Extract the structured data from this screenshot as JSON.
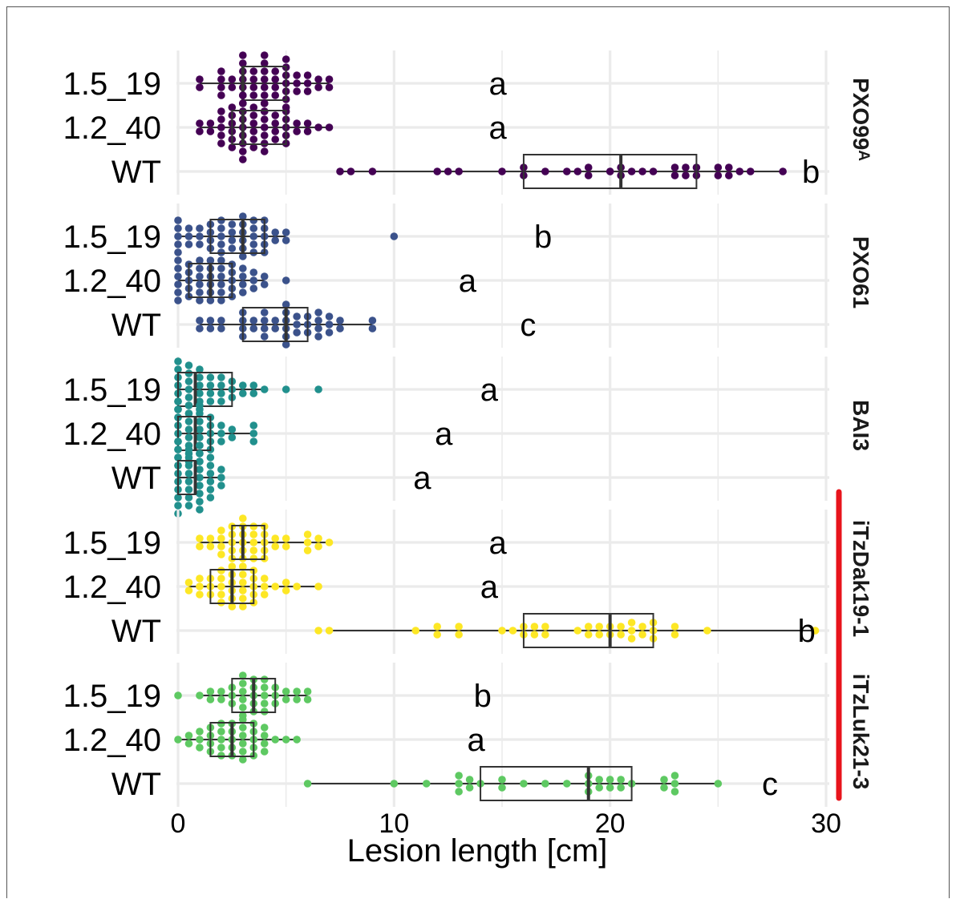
{
  "chart_data": {
    "type": "boxplot-beeswarm",
    "xlabel": "Lesion length [cm]",
    "xlim": [
      0,
      30
    ],
    "x_ticks": [
      0,
      10,
      20,
      30
    ],
    "x_tick_labels": [
      "0",
      "10",
      "20",
      "30"
    ],
    "grid": true,
    "categories": [
      "1.5_19",
      "1.2_40",
      "WT"
    ],
    "highlight_bar_panels": [
      "iTzDak19-1",
      "iTzLuk21-3"
    ],
    "highlight_bar_color": "#e8141c",
    "panels": [
      {
        "name": "PXO99ᴬ",
        "color": "#440154",
        "groups": [
          {
            "label": "1.5_19",
            "box": {
              "min": 1,
              "q1": 3,
              "median": 3,
              "q3": 5,
              "max": 7
            },
            "letter": "a",
            "letter_x": 14.8,
            "points": [
              1,
              1,
              2,
              2,
              2,
              2,
              2.5,
              2.5,
              3,
              3,
              3,
              3,
              3,
              3,
              3,
              3,
              3.5,
              3.5,
              3.5,
              3.5,
              4,
              4,
              4,
              4,
              4,
              4,
              4,
              4,
              4.5,
              4.5,
              4.5,
              4.5,
              5,
              5,
              5,
              5,
              5,
              5,
              5,
              5.5,
              5.5,
              5.5,
              6,
              6,
              6,
              6.5,
              6.5,
              7,
              7
            ]
          },
          {
            "label": "1.2_40",
            "box": {
              "min": 1,
              "q1": 2.5,
              "median": 3,
              "q3": 5,
              "max": 7
            },
            "letter": "a",
            "letter_x": 14.8,
            "points": [
              1,
              1,
              1.5,
              1.5,
              2,
              2,
              2,
              2,
              2,
              2.5,
              2.5,
              2.5,
              2.5,
              2.5,
              2.5,
              3,
              3,
              3,
              3,
              3,
              3,
              3,
              3,
              3,
              3.5,
              3.5,
              3.5,
              3.5,
              3.5,
              3.5,
              4,
              4,
              4,
              4,
              4,
              4,
              4,
              4.5,
              4.5,
              4.5,
              4.5,
              5,
              5,
              5,
              5,
              5,
              5.5,
              5.5,
              6,
              6,
              6.5,
              7
            ]
          },
          {
            "label": "WT",
            "box": {
              "min": 7.5,
              "q1": 16,
              "median": 20.5,
              "q3": 24,
              "max": 28
            },
            "letter": "b",
            "letter_x": 29.3,
            "points": [
              7.5,
              8,
              9,
              12,
              12.5,
              13,
              15,
              16,
              16,
              17,
              18,
              18.5,
              19,
              19,
              20,
              20.5,
              20.5,
              21,
              21.5,
              22,
              23,
              23,
              23.5,
              23.5,
              24,
              24,
              25,
              25,
              25.5,
              25.5,
              26,
              26.5,
              28
            ]
          }
        ]
      },
      {
        "name": "PXO61",
        "color": "#3b528b",
        "groups": [
          {
            "label": "1.5_19",
            "box": {
              "min": 0,
              "q1": 1.5,
              "median": 3,
              "q3": 4,
              "max": 5
            },
            "letter": "b",
            "letter_x": 16.9,
            "points": [
              0,
              0,
              0,
              0,
              0,
              0.5,
              0.5,
              0.5,
              1,
              1,
              1,
              1.5,
              1.5,
              1.5,
              1.5,
              2,
              2,
              2,
              2,
              2,
              2.5,
              2.5,
              2.5,
              2.5,
              3,
              3,
              3,
              3,
              3,
              3,
              3.5,
              3.5,
              3.5,
              3.5,
              3.5,
              4,
              4,
              4,
              4,
              4,
              4.5,
              4.5,
              5,
              5,
              10
            ]
          },
          {
            "label": "1.2_40",
            "box": {
              "min": 0,
              "q1": 0.5,
              "median": 1.5,
              "q3": 2.5,
              "max": 4
            },
            "letter": "a",
            "letter_x": 13.4,
            "points": [
              0,
              0,
              0,
              0,
              0,
              0,
              0.5,
              0.5,
              0.5,
              0.5,
              0.5,
              1,
              1,
              1,
              1,
              1,
              1,
              1.5,
              1.5,
              1.5,
              1.5,
              1.5,
              1.5,
              2,
              2,
              2,
              2,
              2,
              2,
              2.5,
              2.5,
              2.5,
              2.5,
              2.5,
              3,
              3,
              3,
              3,
              3.5,
              3.5,
              3.5,
              4,
              4,
              5
            ]
          },
          {
            "label": "WT",
            "box": {
              "min": 1,
              "q1": 3,
              "median": 5,
              "q3": 6,
              "max": 9
            },
            "letter": "c",
            "letter_x": 16.2,
            "points": [
              1,
              1,
              1.5,
              1.5,
              2,
              2,
              3,
              3,
              3,
              3,
              3.5,
              3.5,
              4,
              4,
              4,
              4,
              4.5,
              4.5,
              5,
              5,
              5,
              5,
              5,
              5,
              5.5,
              5.5,
              5.5,
              6,
              6,
              6,
              6.5,
              6.5,
              6.5,
              6.5,
              7,
              7,
              7,
              7.5,
              7.5,
              9,
              9
            ]
          }
        ]
      },
      {
        "name": "BAI3",
        "color": "#21908d",
        "groups": [
          {
            "label": "1.5_19",
            "box": {
              "min": 0,
              "q1": 0,
              "median": 0.8,
              "q3": 2.5,
              "max": 4
            },
            "letter": "a",
            "letter_x": 14.4,
            "points": [
              0,
              0,
              0,
              0,
              0,
              0,
              0,
              0,
              0.5,
              0.5,
              0.5,
              0.5,
              0.5,
              0.5,
              0.5,
              1,
              1,
              1,
              1,
              1,
              1,
              1.5,
              1.5,
              1.5,
              1.5,
              2,
              2,
              2,
              2,
              2.5,
              2.5,
              2.5,
              3,
              3,
              3.5,
              3.5,
              4,
              5,
              6.5
            ]
          },
          {
            "label": "1.2_40",
            "box": {
              "min": 0,
              "q1": 0,
              "median": 0.8,
              "q3": 1.5,
              "max": 3.5
            },
            "letter": "a",
            "letter_x": 12.3,
            "points": [
              0,
              0,
              0,
              0,
              0,
              0,
              0,
              0,
              0,
              0.5,
              0.5,
              0.5,
              0.5,
              0.5,
              0.5,
              0.5,
              0.5,
              1,
              1,
              1,
              1,
              1,
              1,
              1,
              1,
              1.5,
              1.5,
              1.5,
              1.5,
              1.5,
              2,
              2,
              2,
              2.5,
              2.5,
              3.5,
              3.5,
              3.5
            ]
          },
          {
            "label": "WT",
            "box": {
              "min": 0,
              "q1": 0,
              "median": 0.8,
              "q3": 0.8,
              "max": 2
            },
            "letter": "a",
            "letter_x": 11.3,
            "points": [
              0,
              0,
              0,
              0,
              0,
              0,
              0,
              0,
              0,
              0,
              0.5,
              0.5,
              0.5,
              0.5,
              0.5,
              0.5,
              0.5,
              0.5,
              1,
              1,
              1,
              1,
              1,
              1,
              1,
              1,
              1,
              1.5,
              1.5,
              1.5,
              1.5,
              1.5,
              1.5,
              2,
              2,
              2
            ]
          }
        ]
      },
      {
        "name": "iTzDak19-1",
        "color": "#fde725",
        "groups": [
          {
            "label": "1.5_19",
            "box": {
              "min": 1,
              "q1": 2.5,
              "median": 3,
              "q3": 4,
              "max": 7
            },
            "letter": "a",
            "letter_x": 14.8,
            "points": [
              1,
              1,
              1.5,
              1.5,
              2,
              2,
              2,
              2,
              2.5,
              2.5,
              2.5,
              2.5,
              2.5,
              3,
              3,
              3,
              3,
              3,
              3,
              3,
              3.5,
              3.5,
              3.5,
              3.5,
              3.5,
              4,
              4,
              4,
              4,
              4,
              4.5,
              4.5,
              5,
              5,
              6,
              6,
              6,
              6.5,
              6.5,
              7
            ]
          },
          {
            "label": "1.2_40",
            "box": {
              "min": 0.5,
              "q1": 1.5,
              "median": 2.5,
              "q3": 3.5,
              "max": 6.5
            },
            "letter": "a",
            "letter_x": 14.4,
            "points": [
              0.5,
              0.5,
              1,
              1,
              1,
              1.5,
              1.5,
              1.5,
              2,
              2,
              2,
              2,
              2,
              2.5,
              2.5,
              2.5,
              2.5,
              2.5,
              2.5,
              3,
              3,
              3,
              3,
              3,
              3,
              3.5,
              3.5,
              3.5,
              3.5,
              3.5,
              4,
              4,
              4,
              4.5,
              5,
              5,
              5.5,
              6.5
            ]
          },
          {
            "label": "WT",
            "box": {
              "min": 7,
              "q1": 16,
              "median": 20,
              "q3": 22,
              "max": 29.5
            },
            "letter": "b",
            "letter_x": 29.1,
            "points": [
              6.5,
              7,
              11,
              12,
              12,
              13,
              13,
              15,
              15.5,
              16,
              16,
              16.5,
              16.5,
              17,
              17,
              18.5,
              19,
              19,
              19.5,
              19.5,
              20,
              20,
              20.5,
              20.5,
              21,
              21,
              21,
              21.5,
              21.5,
              22,
              22,
              22,
              23,
              23,
              24.5,
              29.5
            ]
          }
        ]
      },
      {
        "name": "iTzLuk21-3",
        "color": "#5ec962",
        "groups": [
          {
            "label": "1.5_19",
            "box": {
              "min": 1,
              "q1": 2.5,
              "median": 3.5,
              "q3": 4.5,
              "max": 6
            },
            "letter": "b",
            "letter_x": 14.1,
            "points": [
              0,
              1,
              1.5,
              1.5,
              2,
              2,
              2.5,
              2.5,
              2.5,
              3,
              3,
              3,
              3,
              3,
              3,
              3.5,
              3.5,
              3.5,
              3.5,
              3.5,
              4,
              4,
              4,
              4,
              4,
              4.5,
              4.5,
              4.5,
              5,
              5,
              5.5,
              5.5,
              6,
              6
            ]
          },
          {
            "label": "1.2_40",
            "box": {
              "min": 0,
              "q1": 1.5,
              "median": 2.5,
              "q3": 3.5,
              "max": 5.5
            },
            "letter": "a",
            "letter_x": 13.8,
            "points": [
              0,
              0.5,
              0.5,
              1,
              1,
              1,
              1.5,
              1.5,
              1.5,
              1.5,
              2,
              2,
              2,
              2,
              2,
              2.5,
              2.5,
              2.5,
              2.5,
              2.5,
              3,
              3,
              3,
              3,
              3,
              3,
              3.5,
              3.5,
              3.5,
              3.5,
              3.5,
              4,
              4,
              4,
              4,
              4.5,
              5,
              5.5
            ]
          },
          {
            "label": "WT",
            "box": {
              "min": 6,
              "q1": 14,
              "median": 19,
              "q3": 21,
              "max": 25
            },
            "letter": "c",
            "letter_x": 27.4,
            "points": [
              6,
              10,
              11.5,
              13,
              13,
              13,
              13.5,
              13.5,
              14,
              15,
              15,
              16,
              17,
              18,
              19,
              19,
              19,
              19.5,
              19.5,
              20,
              20,
              20.5,
              20.5,
              21,
              22.5,
              22.5,
              23,
              23,
              23,
              25
            ]
          }
        ]
      }
    ]
  }
}
